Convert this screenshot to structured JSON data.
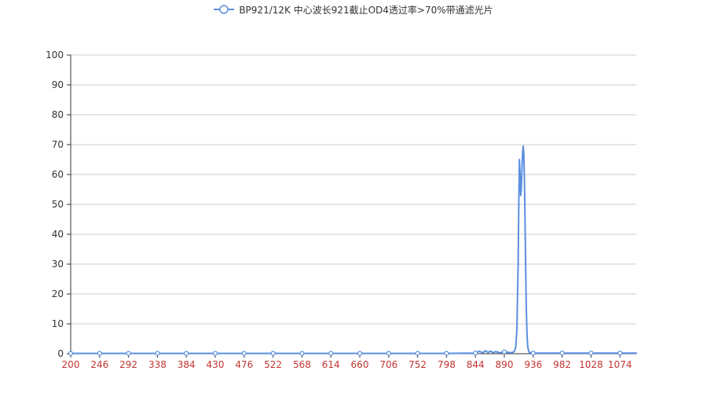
{
  "colors": {
    "line": "#5b8fe0",
    "grid": "#cccccc",
    "axis": "#333333",
    "ytick_text": "#333333",
    "xtick_text": "#c23531",
    "baseline": "#c23531"
  },
  "legend": {
    "series_name": "BP921/12K 中心波长921截止OD4透过率>70%带通滤光片",
    "icon": "circle-line-icon",
    "position": "top-center"
  },
  "chart_data": {
    "type": "line",
    "title": "",
    "xlabel": "",
    "ylabel": "",
    "xlim": [
      200,
      1100
    ],
    "ylim": [
      0,
      100
    ],
    "grid": true,
    "x_ticks": [
      200,
      246,
      292,
      338,
      384,
      430,
      476,
      522,
      568,
      614,
      660,
      706,
      752,
      798,
      844,
      890,
      936,
      982,
      1028,
      1074
    ],
    "y_ticks": [
      0,
      10,
      20,
      30,
      40,
      50,
      60,
      70,
      80,
      90,
      100
    ],
    "series": [
      {
        "name": "BP921/12K 中心波长921截止OD4透过率>70%带通滤光片",
        "x": [
          200,
          246,
          292,
          338,
          384,
          430,
          476,
          522,
          568,
          614,
          660,
          706,
          752,
          798,
          844,
          850,
          856,
          860,
          864,
          868,
          872,
          876,
          880,
          884,
          888,
          892,
          896,
          900,
          904,
          906,
          908,
          910,
          912,
          913,
          914,
          915,
          916,
          917,
          918,
          919,
          920,
          921,
          922,
          923,
          924,
          925,
          926,
          927,
          928,
          929,
          930,
          932,
          934,
          936,
          940,
          950,
          960,
          982,
          1000,
          1028,
          1050,
          1074,
          1100
        ],
        "y": [
          0.1,
          0.1,
          0.1,
          0.1,
          0.1,
          0.1,
          0.1,
          0.1,
          0.1,
          0.1,
          0.1,
          0.1,
          0.1,
          0.1,
          0.2,
          0.8,
          0.3,
          1.0,
          0.4,
          0.9,
          0.3,
          0.7,
          0.5,
          0.3,
          0.6,
          0.4,
          0.5,
          0.3,
          0.5,
          0.8,
          2.0,
          8.0,
          30.0,
          50.0,
          65.0,
          60.0,
          53.0,
          55.0,
          62.0,
          67.0,
          69.5,
          67.0,
          58.0,
          44.0,
          28.0,
          15.0,
          7.0,
          3.0,
          1.5,
          0.8,
          0.4,
          0.3,
          0.2,
          0.2,
          0.2,
          0.2,
          0.2,
          0.2,
          0.2,
          0.2,
          0.2,
          0.2,
          0.2
        ]
      }
    ]
  }
}
